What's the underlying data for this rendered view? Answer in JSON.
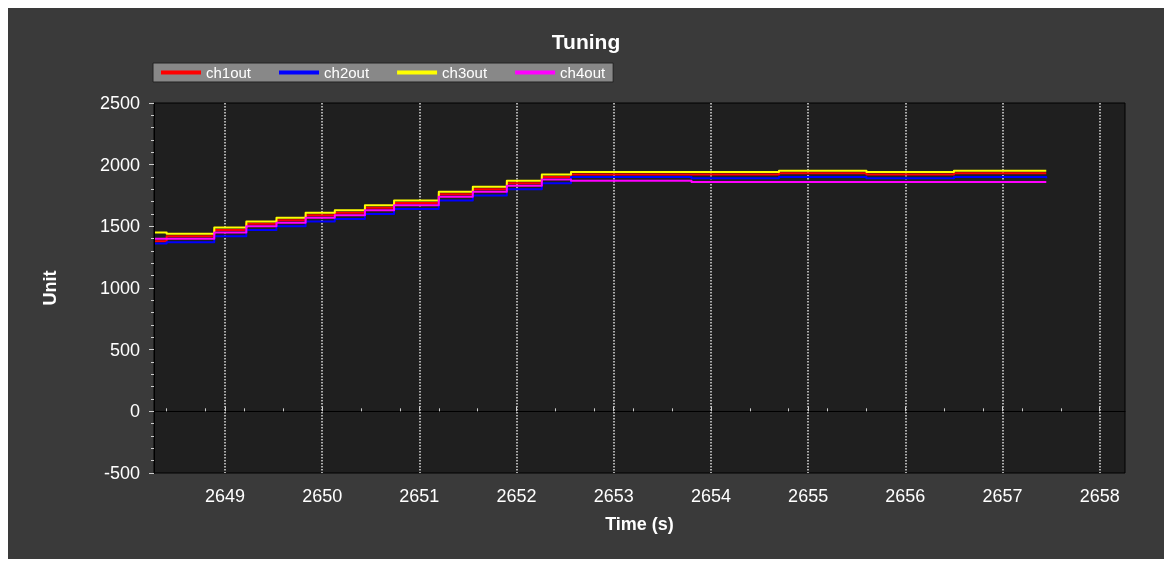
{
  "chart_data": {
    "type": "step",
    "title": "Tuning",
    "xlabel": "Time (s)",
    "ylabel": "Unit",
    "x": [
      2648.28,
      2648.4,
      2648.89,
      2649.22,
      2649.53,
      2649.83,
      2650.13,
      2650.44,
      2650.74,
      2651.2,
      2651.55,
      2651.9,
      2652.26,
      2652.56,
      2652.9,
      2653.8,
      2654.7,
      2655.6,
      2656.5,
      2657.45
    ],
    "series": [
      {
        "name": "ch1out",
        "color": "#ff0000",
        "values": [
          1380,
          1420,
          1470,
          1520,
          1550,
          1590,
          1610,
          1650,
          1690,
          1760,
          1800,
          1850,
          1900,
          1920,
          1920,
          1920,
          1930,
          1920,
          1930,
          1930
        ]
      },
      {
        "name": "ch2out",
        "color": "#0000ff",
        "values": [
          1360,
          1370,
          1420,
          1470,
          1500,
          1540,
          1560,
          1600,
          1640,
          1710,
          1750,
          1800,
          1850,
          1900,
          1900,
          1890,
          1900,
          1890,
          1900,
          1890
        ]
      },
      {
        "name": "ch3out",
        "color": "#ffff00",
        "values": [
          1450,
          1440,
          1490,
          1540,
          1570,
          1610,
          1630,
          1670,
          1710,
          1780,
          1820,
          1870,
          1920,
          1940,
          1940,
          1940,
          1950,
          1940,
          1950,
          1950
        ]
      },
      {
        "name": "ch4out",
        "color": "#ff00ff",
        "values": [
          1400,
          1400,
          1450,
          1500,
          1530,
          1570,
          1590,
          1630,
          1670,
          1740,
          1780,
          1830,
          1880,
          1870,
          1870,
          1860,
          1860,
          1860,
          1860,
          1860
        ]
      }
    ],
    "xlim": [
      2648.27,
      2658.26
    ],
    "xticks": [
      2649,
      2650,
      2651,
      2652,
      2653,
      2654,
      2655,
      2656,
      2657,
      2658
    ],
    "ylim": [
      -500,
      2500
    ],
    "yticks": [
      -500,
      0,
      500,
      1000,
      1500,
      2000,
      2500
    ],
    "grid": "x",
    "legend": "top left",
    "line_style": "solid",
    "marker": "none"
  }
}
